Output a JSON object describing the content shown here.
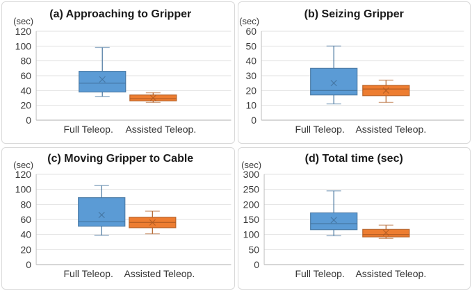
{
  "figure": {
    "background_color": "#ffffff",
    "panel_border_color": "#d9d9d9",
    "gridline_color": "#e2e2e2",
    "axis_line_color": "#bfbfbf",
    "text_color": "#3b3b3b"
  },
  "chart_data": [
    {
      "type": "boxplot",
      "panel": "a",
      "title": "(a) Approaching to Gripper",
      "unit_label": "(sec)",
      "categories": [
        "Full Teleop.",
        "Assisted Teleop."
      ],
      "ylim": [
        0,
        120
      ],
      "yticks": [
        0,
        20,
        40,
        60,
        80,
        100,
        120
      ],
      "grid": true,
      "legend": "none",
      "series": [
        {
          "name": "Full Teleop.",
          "fill_color": "#5B9BD5",
          "line_color": "#41719C",
          "whisker_low": 32,
          "q1": 38,
          "median": 50,
          "mean": 55,
          "q3": 66,
          "whisker_high": 98
        },
        {
          "name": "Assisted Teleop.",
          "fill_color": "#ED7D31",
          "line_color": "#AE5A21",
          "whisker_low": 24,
          "q1": 26,
          "median": 29,
          "mean": 30,
          "q3": 34,
          "whisker_high": 37
        }
      ]
    },
    {
      "type": "boxplot",
      "panel": "b",
      "title": "(b) Seizing Gripper",
      "unit_label": "(sec)",
      "categories": [
        "Full Teleop.",
        "Assisted Teleop."
      ],
      "ylim": [
        0,
        60
      ],
      "yticks": [
        0,
        10,
        20,
        30,
        40,
        50,
        60
      ],
      "grid": true,
      "legend": "none",
      "series": [
        {
          "name": "Full Teleop.",
          "fill_color": "#5B9BD5",
          "line_color": "#41719C",
          "whisker_low": 11,
          "q1": 17,
          "median": 20,
          "mean": 25,
          "q3": 35,
          "whisker_high": 50
        },
        {
          "name": "Assisted Teleop.",
          "fill_color": "#ED7D31",
          "line_color": "#AE5A21",
          "whisker_low": 12,
          "q1": 16.5,
          "median": 21,
          "mean": 20,
          "q3": 23.5,
          "whisker_high": 27
        }
      ]
    },
    {
      "type": "boxplot",
      "panel": "c",
      "title": "(c) Moving Gripper to Cable",
      "unit_label": "(sec)",
      "categories": [
        "Full Teleop.",
        "Assisted Teleop."
      ],
      "ylim": [
        0,
        120
      ],
      "yticks": [
        0,
        20,
        40,
        60,
        80,
        100,
        120
      ],
      "grid": true,
      "legend": "none",
      "series": [
        {
          "name": "Full Teleop.",
          "fill_color": "#5B9BD5",
          "line_color": "#41719C",
          "whisker_low": 39,
          "q1": 51,
          "median": 57,
          "mean": 66,
          "q3": 89,
          "whisker_high": 105
        },
        {
          "name": "Assisted Teleop.",
          "fill_color": "#ED7D31",
          "line_color": "#AE5A21",
          "whisker_low": 41,
          "q1": 49,
          "median": 56,
          "mean": 56,
          "q3": 63,
          "whisker_high": 71
        }
      ]
    },
    {
      "type": "boxplot",
      "panel": "d",
      "title": "(d) Total time (sec)",
      "unit_label": "(sec)",
      "categories": [
        "Full Teleop.",
        "Assisted Teleop."
      ],
      "ylim": [
        0,
        300
      ],
      "yticks": [
        0,
        50,
        100,
        150,
        200,
        250,
        300
      ],
      "grid": true,
      "legend": "none",
      "series": [
        {
          "name": "Full Teleop.",
          "fill_color": "#5B9BD5",
          "line_color": "#41719C",
          "whisker_low": 96,
          "q1": 116,
          "median": 136,
          "mean": 148,
          "q3": 172,
          "whisker_high": 245
        },
        {
          "name": "Assisted Teleop.",
          "fill_color": "#ED7D31",
          "line_color": "#AE5A21",
          "whisker_low": 87,
          "q1": 92,
          "median": 100,
          "mean": 106,
          "q3": 117,
          "whisker_high": 131
        }
      ]
    }
  ]
}
